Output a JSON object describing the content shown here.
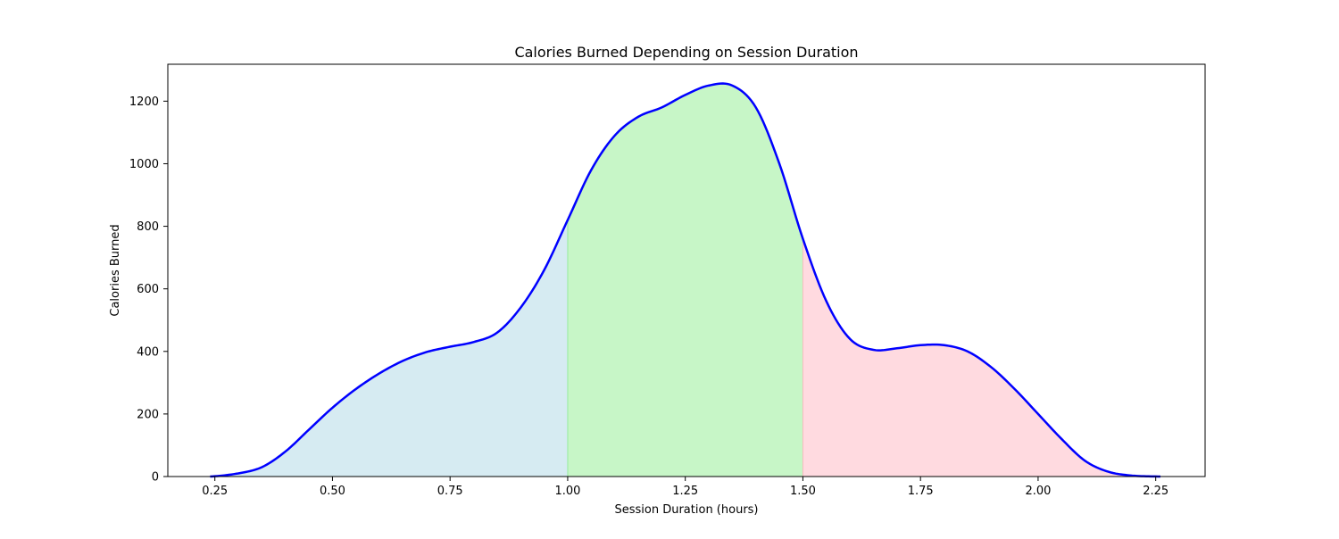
{
  "chart_data": {
    "type": "area",
    "title": "Calories Burned Depending on Session Duration",
    "xlabel": "Session Duration (hours)",
    "ylabel": "Calories Burned",
    "xlim": [
      0.15,
      2.355
    ],
    "ylim": [
      0,
      1318
    ],
    "x_ticks": [
      0.25,
      0.5,
      0.75,
      1.0,
      1.25,
      1.5,
      1.75,
      2.0,
      2.25
    ],
    "x_tick_labels": [
      "0.25",
      "0.50",
      "0.75",
      "1.00",
      "1.25",
      "1.50",
      "1.75",
      "2.00",
      "2.25"
    ],
    "y_ticks": [
      0,
      200,
      400,
      600,
      800,
      1000,
      1200
    ],
    "y_tick_labels": [
      "0",
      "200",
      "400",
      "600",
      "800",
      "1000",
      "1200"
    ],
    "grid": false,
    "line_color": "#0000ff",
    "series": [
      {
        "x": [
          0.24,
          0.3,
          0.35,
          0.4,
          0.45,
          0.5,
          0.55,
          0.6,
          0.65,
          0.7,
          0.75,
          0.8,
          0.85,
          0.9,
          0.95,
          1.0,
          1.05,
          1.1,
          1.15,
          1.2,
          1.25,
          1.3,
          1.35,
          1.4,
          1.45,
          1.5,
          1.55,
          1.6,
          1.65,
          1.7,
          1.75,
          1.8,
          1.85,
          1.9,
          1.95,
          2.0,
          2.05,
          2.1,
          2.15,
          2.2,
          2.26
        ],
        "y": [
          0,
          10,
          30,
          80,
          150,
          220,
          280,
          330,
          370,
          398,
          415,
          430,
          460,
          540,
          660,
          820,
          980,
          1090,
          1150,
          1180,
          1220,
          1250,
          1250,
          1180,
          1000,
          760,
          560,
          440,
          405,
          410,
          420,
          420,
          400,
          350,
          280,
          200,
          120,
          50,
          15,
          3,
          0
        ]
      }
    ],
    "regions": [
      {
        "x_start": 0.24,
        "x_end": 1.0,
        "color": "#add8e6"
      },
      {
        "x_start": 1.0,
        "x_end": 1.5,
        "color": "#90ee90"
      },
      {
        "x_start": 1.5,
        "x_end": 2.26,
        "color": "#ffb6c1"
      }
    ]
  }
}
